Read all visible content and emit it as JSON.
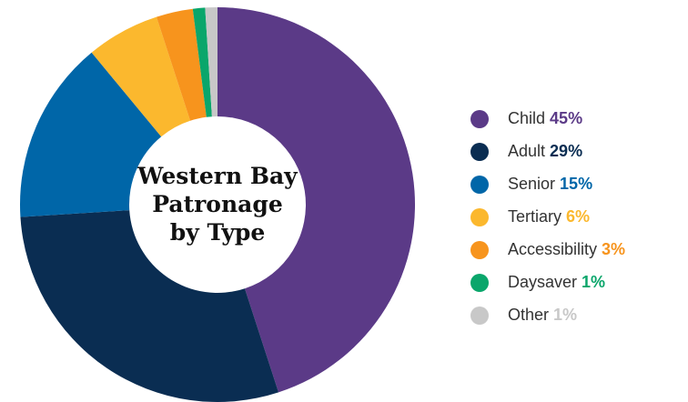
{
  "chart_data": {
    "type": "donut",
    "title": "Western Bay\nPatronage\nby Type",
    "categories": [
      "Child",
      "Adult",
      "Senior",
      "Tertiary",
      "Accessibility",
      "Daysaver",
      "Other"
    ],
    "values": [
      45,
      29,
      15,
      6,
      3,
      1,
      1
    ],
    "value_labels": [
      "45%",
      "29%",
      "15%",
      "6%",
      "3%",
      "1%",
      "1%"
    ],
    "colors": [
      "#5b3a87",
      "#0a2d52",
      "#0066a8",
      "#fbb82e",
      "#f7941d",
      "#0aa66b",
      "#c8c8c8"
    ],
    "legend": "right"
  }
}
